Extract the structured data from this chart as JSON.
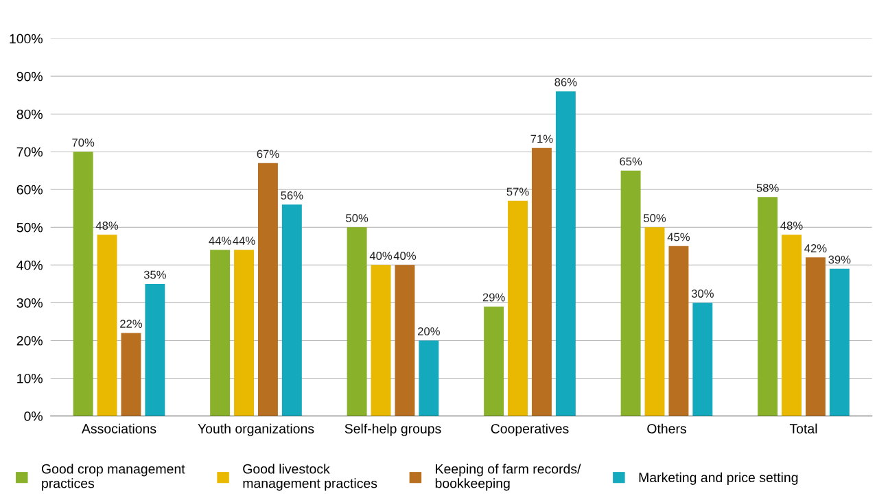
{
  "chart_data": {
    "type": "bar",
    "categories": [
      "Associations",
      "Youth organizations",
      "Self-help groups",
      "Cooperatives",
      "Others",
      "Total"
    ],
    "series": [
      {
        "name": "Good crop management practices",
        "color": "#8ab12a",
        "values": [
          70,
          44,
          50,
          29,
          65,
          58
        ],
        "value_labels": [
          "70%",
          "44%",
          "50%",
          "29%",
          "65%",
          "58%"
        ]
      },
      {
        "name": "Good livestock management practices",
        "color": "#e9b800",
        "values": [
          48,
          44,
          40,
          57,
          50,
          48
        ],
        "value_labels": [
          "48%",
          "44%",
          "40%",
          "57%",
          "50%",
          "48%"
        ]
      },
      {
        "name": "Keeping of farm records/ bookkeeping",
        "color": "#b87020",
        "values": [
          22,
          67,
          40,
          71,
          45,
          42
        ],
        "value_labels": [
          "22%",
          "67%",
          "40%",
          "71%",
          "45%",
          "42%"
        ]
      },
      {
        "name": "Marketing and price setting",
        "color": "#14a9bd",
        "values": [
          35,
          56,
          20,
          86,
          30,
          39
        ],
        "value_labels": [
          "35%",
          "56%",
          "20%",
          "86%",
          "30%",
          "39%"
        ]
      }
    ],
    "ylim": [
      0,
      100
    ],
    "yticks": [
      {
        "value": 0,
        "label": "0%"
      },
      {
        "value": 10,
        "label": "10%"
      },
      {
        "value": 20,
        "label": "20%"
      },
      {
        "value": 30,
        "label": "30%"
      },
      {
        "value": 40,
        "label": "40%"
      },
      {
        "value": 50,
        "label": "50%"
      },
      {
        "value": 60,
        "label": "60%"
      },
      {
        "value": 70,
        "label": "70%"
      },
      {
        "value": 80,
        "label": "80%"
      },
      {
        "value": 90,
        "label": "90%"
      },
      {
        "value": 100,
        "label": "100%"
      }
    ],
    "grid": "y",
    "legend": "bottom"
  }
}
